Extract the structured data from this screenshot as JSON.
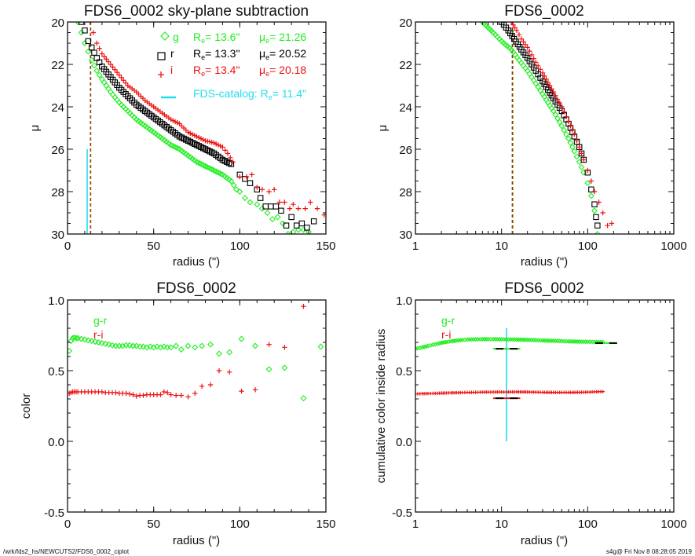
{
  "colors": {
    "g": "#22ee22",
    "r": "#000000",
    "i": "#ee1111",
    "catalog": "#22ddee"
  },
  "footer": {
    "left": "/wrk/fds2_hs/NEWCUTS2/FDS6_0002_ciplot",
    "right": "s4g@  Fri Nov  8 08:28:05 2019"
  },
  "chart_data": [
    {
      "id": "profile-linear",
      "type": "scatter",
      "title": "FDS6_0002 sky-plane subtraction",
      "xlabel": "radius (\")",
      "ylabel": "μ",
      "xscale": "linear",
      "xlim": [
        0,
        150
      ],
      "ylim": [
        30,
        20
      ],
      "xticks": [
        0,
        50,
        100,
        150
      ],
      "yticks": [
        20,
        22,
        24,
        26,
        28,
        30
      ],
      "legend": {
        "placement": "top-right",
        "entries": [
          {
            "symbol": "diamond",
            "band": "g",
            "label": "g",
            "re_label": "R",
            "re_sub": "e",
            "re_value": "=  13.6\"",
            "mu_label": "μ",
            "mu_sub": "e",
            "mu_value": "= 21.26"
          },
          {
            "symbol": "square",
            "band": "r",
            "label": "r",
            "re_label": "R",
            "re_sub": "e",
            "re_value": "=  13.3\"",
            "mu_label": "μ",
            "mu_sub": "e",
            "mu_value": "= 20.52"
          },
          {
            "symbol": "plus",
            "band": "i",
            "label": "i",
            "re_label": "R",
            "re_sub": "e",
            "re_value": "=  13.4\"",
            "mu_label": "μ",
            "mu_sub": "e",
            "mu_value": "= 20.18"
          }
        ],
        "catalog": {
          "label": "FDS-catalog: R",
          "sub": "e",
          "value": "=  11.4\""
        }
      },
      "series": [
        {
          "name": "g",
          "marker": "diamond",
          "x": [
            6,
            8,
            10,
            12,
            14,
            17,
            20,
            25,
            30,
            35,
            40,
            45,
            50,
            55,
            60,
            65,
            70,
            75,
            80,
            85,
            90,
            95,
            98,
            100,
            103,
            106,
            110,
            113,
            116,
            119,
            122,
            125,
            128,
            131,
            134,
            137,
            140
          ],
          "y": [
            20.0,
            20.5,
            21.0,
            21.4,
            21.8,
            22.3,
            22.7,
            23.3,
            23.8,
            24.2,
            24.6,
            24.9,
            25.2,
            25.5,
            25.8,
            26.0,
            26.3,
            26.6,
            26.8,
            27.0,
            27.2,
            27.5,
            27.9,
            28.0,
            28.3,
            28.5,
            28.6,
            28.8,
            29.0,
            29.3,
            29.2,
            29.5,
            30.0,
            29.9,
            29.8,
            29.8,
            29.9
          ]
        },
        {
          "name": "r",
          "marker": "square",
          "x": [
            8,
            10,
            12,
            14,
            17,
            20,
            25,
            30,
            35,
            40,
            45,
            50,
            55,
            60,
            65,
            70,
            75,
            80,
            85,
            90,
            95,
            100,
            103,
            106,
            110,
            112,
            115,
            118,
            121,
            124,
            127,
            130,
            133,
            136,
            139,
            143
          ],
          "y": [
            20.0,
            20.4,
            20.9,
            21.2,
            21.7,
            22.1,
            22.6,
            23.1,
            23.5,
            23.9,
            24.2,
            24.5,
            24.8,
            25.1,
            25.4,
            25.6,
            25.8,
            26.0,
            26.2,
            26.5,
            26.7,
            27.2,
            27.4,
            27.6,
            27.9,
            28.3,
            28.7,
            28.7,
            28.7,
            28.9,
            29.6,
            29.2,
            29.6,
            29.5,
            29.7,
            29.4
          ]
        },
        {
          "name": "i",
          "marker": "plus",
          "x": [
            13,
            15,
            17,
            20,
            25,
            30,
            35,
            40,
            45,
            50,
            55,
            60,
            65,
            70,
            75,
            80,
            85,
            90,
            93,
            96,
            100,
            104,
            107,
            110,
            113,
            117,
            120,
            123,
            126,
            129,
            131,
            134,
            138,
            141,
            145,
            149
          ],
          "y": [
            20.0,
            20.5,
            21.0,
            21.5,
            22.0,
            22.5,
            23.0,
            23.3,
            23.7,
            24.0,
            24.3,
            24.6,
            24.8,
            25.2,
            25.4,
            25.6,
            25.7,
            25.9,
            26.2,
            26.6,
            27.3,
            27.3,
            27.2,
            27.8,
            27.9,
            28.0,
            27.9,
            28.5,
            28.5,
            28.8,
            28.6,
            28.8,
            28.8,
            28.5,
            28.8,
            29.1
          ]
        }
      ],
      "vlines": [
        {
          "x": 13.6,
          "band": "g",
          "style": "dashed",
          "ymin": 20,
          "ymax": 30
        },
        {
          "x": 13.3,
          "band": "r",
          "style": "dashed",
          "ymin": 20,
          "ymax": 30
        },
        {
          "x": 13.4,
          "band": "i",
          "style": "dashed",
          "ymin": 20,
          "ymax": 30
        },
        {
          "x": 11.4,
          "band": "catalog",
          "style": "solid",
          "ymin": 26,
          "ymax": 30
        }
      ]
    },
    {
      "id": "profile-log",
      "type": "scatter",
      "title": "FDS6_0002",
      "xlabel": "radius (\")",
      "ylabel": "μ",
      "xscale": "log",
      "xlim": [
        1,
        1000
      ],
      "ylim": [
        30,
        20
      ],
      "xticks": [
        1,
        10,
        100,
        1000
      ],
      "yticks": [
        20,
        22,
        24,
        26,
        28,
        30
      ],
      "series": [
        {
          "name": "g",
          "marker": "diamond",
          "x": [
            6,
            8,
            10,
            13,
            16,
            20,
            25,
            30,
            40,
            50,
            60,
            70,
            80,
            90,
            100,
            110,
            120,
            130
          ],
          "y": [
            20.0,
            20.5,
            20.9,
            21.3,
            21.8,
            22.3,
            22.9,
            23.4,
            24.2,
            24.9,
            25.5,
            26.1,
            26.6,
            27.1,
            27.6,
            28.2,
            28.9,
            30.0
          ]
        },
        {
          "name": "r",
          "marker": "square",
          "x": [
            10,
            12,
            14,
            17,
            20,
            25,
            30,
            40,
            50,
            60,
            70,
            80,
            90,
            100,
            110,
            120,
            125,
            130
          ],
          "y": [
            20.0,
            20.4,
            20.8,
            21.3,
            21.7,
            22.3,
            22.8,
            23.6,
            24.2,
            24.8,
            25.4,
            25.9,
            26.5,
            27.1,
            27.9,
            28.6,
            29.2,
            29.6
          ]
        },
        {
          "name": "i",
          "marker": "plus",
          "x": [
            13,
            15,
            17,
            20,
            25,
            30,
            40,
            50,
            60,
            70,
            80,
            90,
            100,
            110,
            120,
            135,
            150,
            170,
            190
          ],
          "y": [
            20.0,
            20.4,
            20.8,
            21.2,
            21.9,
            22.4,
            23.3,
            24.0,
            24.7,
            25.3,
            25.9,
            26.5,
            27.0,
            27.5,
            28.0,
            28.5,
            29.0,
            29.6,
            29.5
          ]
        }
      ],
      "vlines": [
        {
          "x": 13.6,
          "band": "g",
          "style": "dashed",
          "ymin": 20,
          "ymax": 30
        },
        {
          "x": 13.3,
          "band": "r",
          "style": "dashed",
          "ymin": 20,
          "ymax": 30
        },
        {
          "x": 13.4,
          "band": "i",
          "style": "dashed",
          "ymin": 20,
          "ymax": 30
        }
      ]
    },
    {
      "id": "color-profile",
      "type": "scatter",
      "title": "FDS6_0002",
      "xlabel": "radius (\")",
      "ylabel": "color",
      "xscale": "linear",
      "xlim": [
        0,
        150
      ],
      "ylim": [
        -0.5,
        1.0
      ],
      "xticks": [
        0,
        50,
        100,
        150
      ],
      "yticks": [
        -0.5,
        0.0,
        0.5,
        1.0
      ],
      "ytick_labels": [
        "-0.5",
        "0.0",
        "0.5",
        "1.0"
      ],
      "legend": {
        "placement": "top-left",
        "entries": [
          {
            "band": "g",
            "label": "g-r"
          },
          {
            "band": "i",
            "label": "r-i"
          }
        ]
      },
      "series": [
        {
          "name": "g-r",
          "band": "g",
          "marker": "diamond",
          "x": [
            1,
            2,
            3,
            4,
            5,
            6,
            8,
            10,
            12,
            14,
            16,
            18,
            20,
            22,
            24,
            26,
            28,
            30,
            32,
            34,
            36,
            38,
            40,
            42,
            44,
            46,
            48,
            50,
            52,
            54,
            56,
            58,
            60,
            63,
            66,
            70,
            74,
            78,
            83,
            88,
            94,
            101,
            109,
            117,
            126,
            137,
            147
          ],
          "y": [
            0.64,
            0.71,
            0.73,
            0.735,
            0.73,
            0.73,
            0.725,
            0.72,
            0.715,
            0.71,
            0.705,
            0.7,
            0.695,
            0.69,
            0.685,
            0.68,
            0.675,
            0.675,
            0.675,
            0.68,
            0.68,
            0.675,
            0.675,
            0.67,
            0.67,
            0.665,
            0.67,
            0.665,
            0.67,
            0.665,
            0.67,
            0.665,
            0.665,
            0.675,
            0.65,
            0.675,
            0.665,
            0.675,
            0.685,
            0.62,
            0.63,
            0.725,
            0.675,
            0.51,
            0.52,
            0.305,
            0.67
          ]
        },
        {
          "name": "r-i",
          "band": "i",
          "marker": "plus",
          "x": [
            1,
            2,
            3,
            4,
            5,
            6,
            8,
            10,
            12,
            14,
            16,
            18,
            20,
            22,
            24,
            26,
            28,
            30,
            32,
            34,
            36,
            38,
            40,
            42,
            44,
            46,
            48,
            50,
            52,
            54,
            56,
            58,
            60,
            63,
            66,
            70,
            74,
            78,
            83,
            88,
            94,
            101,
            109,
            117,
            126,
            137
          ],
          "y": [
            0.34,
            0.345,
            0.35,
            0.35,
            0.35,
            0.35,
            0.35,
            0.35,
            0.35,
            0.35,
            0.35,
            0.35,
            0.35,
            0.345,
            0.345,
            0.345,
            0.345,
            0.34,
            0.34,
            0.34,
            0.335,
            0.33,
            0.32,
            0.325,
            0.325,
            0.33,
            0.33,
            0.33,
            0.33,
            0.33,
            0.35,
            0.345,
            0.33,
            0.325,
            0.325,
            0.315,
            0.34,
            0.39,
            0.4,
            0.5,
            0.49,
            0.355,
            0.365,
            0.685,
            0.665,
            0.955
          ]
        }
      ]
    },
    {
      "id": "cumulative-color",
      "type": "scatter",
      "title": "FDS6_0002",
      "xlabel": "radius (\")",
      "ylabel": "cumulative color inside radius",
      "xscale": "log",
      "xlim": [
        1,
        1000
      ],
      "ylim": [
        -0.5,
        1.0
      ],
      "xticks": [
        1,
        10,
        100,
        1000
      ],
      "yticks": [
        -0.5,
        0.0,
        0.5,
        1.0
      ],
      "ytick_labels": [
        "-0.5",
        "0.0",
        "0.5",
        "1.0"
      ],
      "legend": {
        "placement": "top-left",
        "entries": [
          {
            "band": "g",
            "label": "g-r"
          },
          {
            "band": "i",
            "label": "r-i"
          }
        ]
      },
      "series": [
        {
          "name": "g-r",
          "band": "g",
          "marker": "diamond",
          "x": [
            1,
            1.2,
            1.4,
            1.6,
            1.8,
            2,
            2.3,
            2.6,
            3,
            3.5,
            4,
            5,
            6,
            7,
            8,
            10,
            12,
            15,
            20,
            25,
            30,
            40,
            50,
            60,
            80,
            100,
            120,
            150
          ],
          "y": [
            0.655,
            0.665,
            0.675,
            0.683,
            0.69,
            0.697,
            0.703,
            0.708,
            0.713,
            0.717,
            0.72,
            0.722,
            0.723,
            0.723,
            0.723,
            0.722,
            0.721,
            0.72,
            0.718,
            0.716,
            0.714,
            0.711,
            0.709,
            0.707,
            0.705,
            0.704,
            0.703,
            0.703
          ]
        },
        {
          "name": "r-i",
          "band": "i",
          "marker": "plus",
          "x": [
            1,
            1.2,
            1.4,
            1.6,
            1.8,
            2,
            2.3,
            2.6,
            3,
            3.5,
            4,
            5,
            6,
            7,
            8,
            10,
            12,
            15,
            20,
            25,
            30,
            40,
            50,
            60,
            80,
            100,
            120,
            150
          ],
          "y": [
            0.335,
            0.337,
            0.338,
            0.339,
            0.34,
            0.341,
            0.342,
            0.343,
            0.344,
            0.345,
            0.346,
            0.347,
            0.348,
            0.348,
            0.349,
            0.349,
            0.349,
            0.35,
            0.349,
            0.348,
            0.347,
            0.346,
            0.346,
            0.346,
            0.347,
            0.348,
            0.35,
            0.352
          ]
        }
      ],
      "markers": [
        {
          "band": "g",
          "x0": 8,
          "x1": 16.5,
          "y": 0.655
        },
        {
          "band": "i",
          "x0": 8,
          "x1": 16.5,
          "y": 0.305
        },
        {
          "band": "g",
          "x0": 128,
          "x1": 210,
          "y": 0.695
        }
      ],
      "vlines": [
        {
          "x": 11.4,
          "band": "catalog",
          "style": "solid",
          "ymin": 0.0,
          "ymax": 0.8
        }
      ]
    }
  ]
}
